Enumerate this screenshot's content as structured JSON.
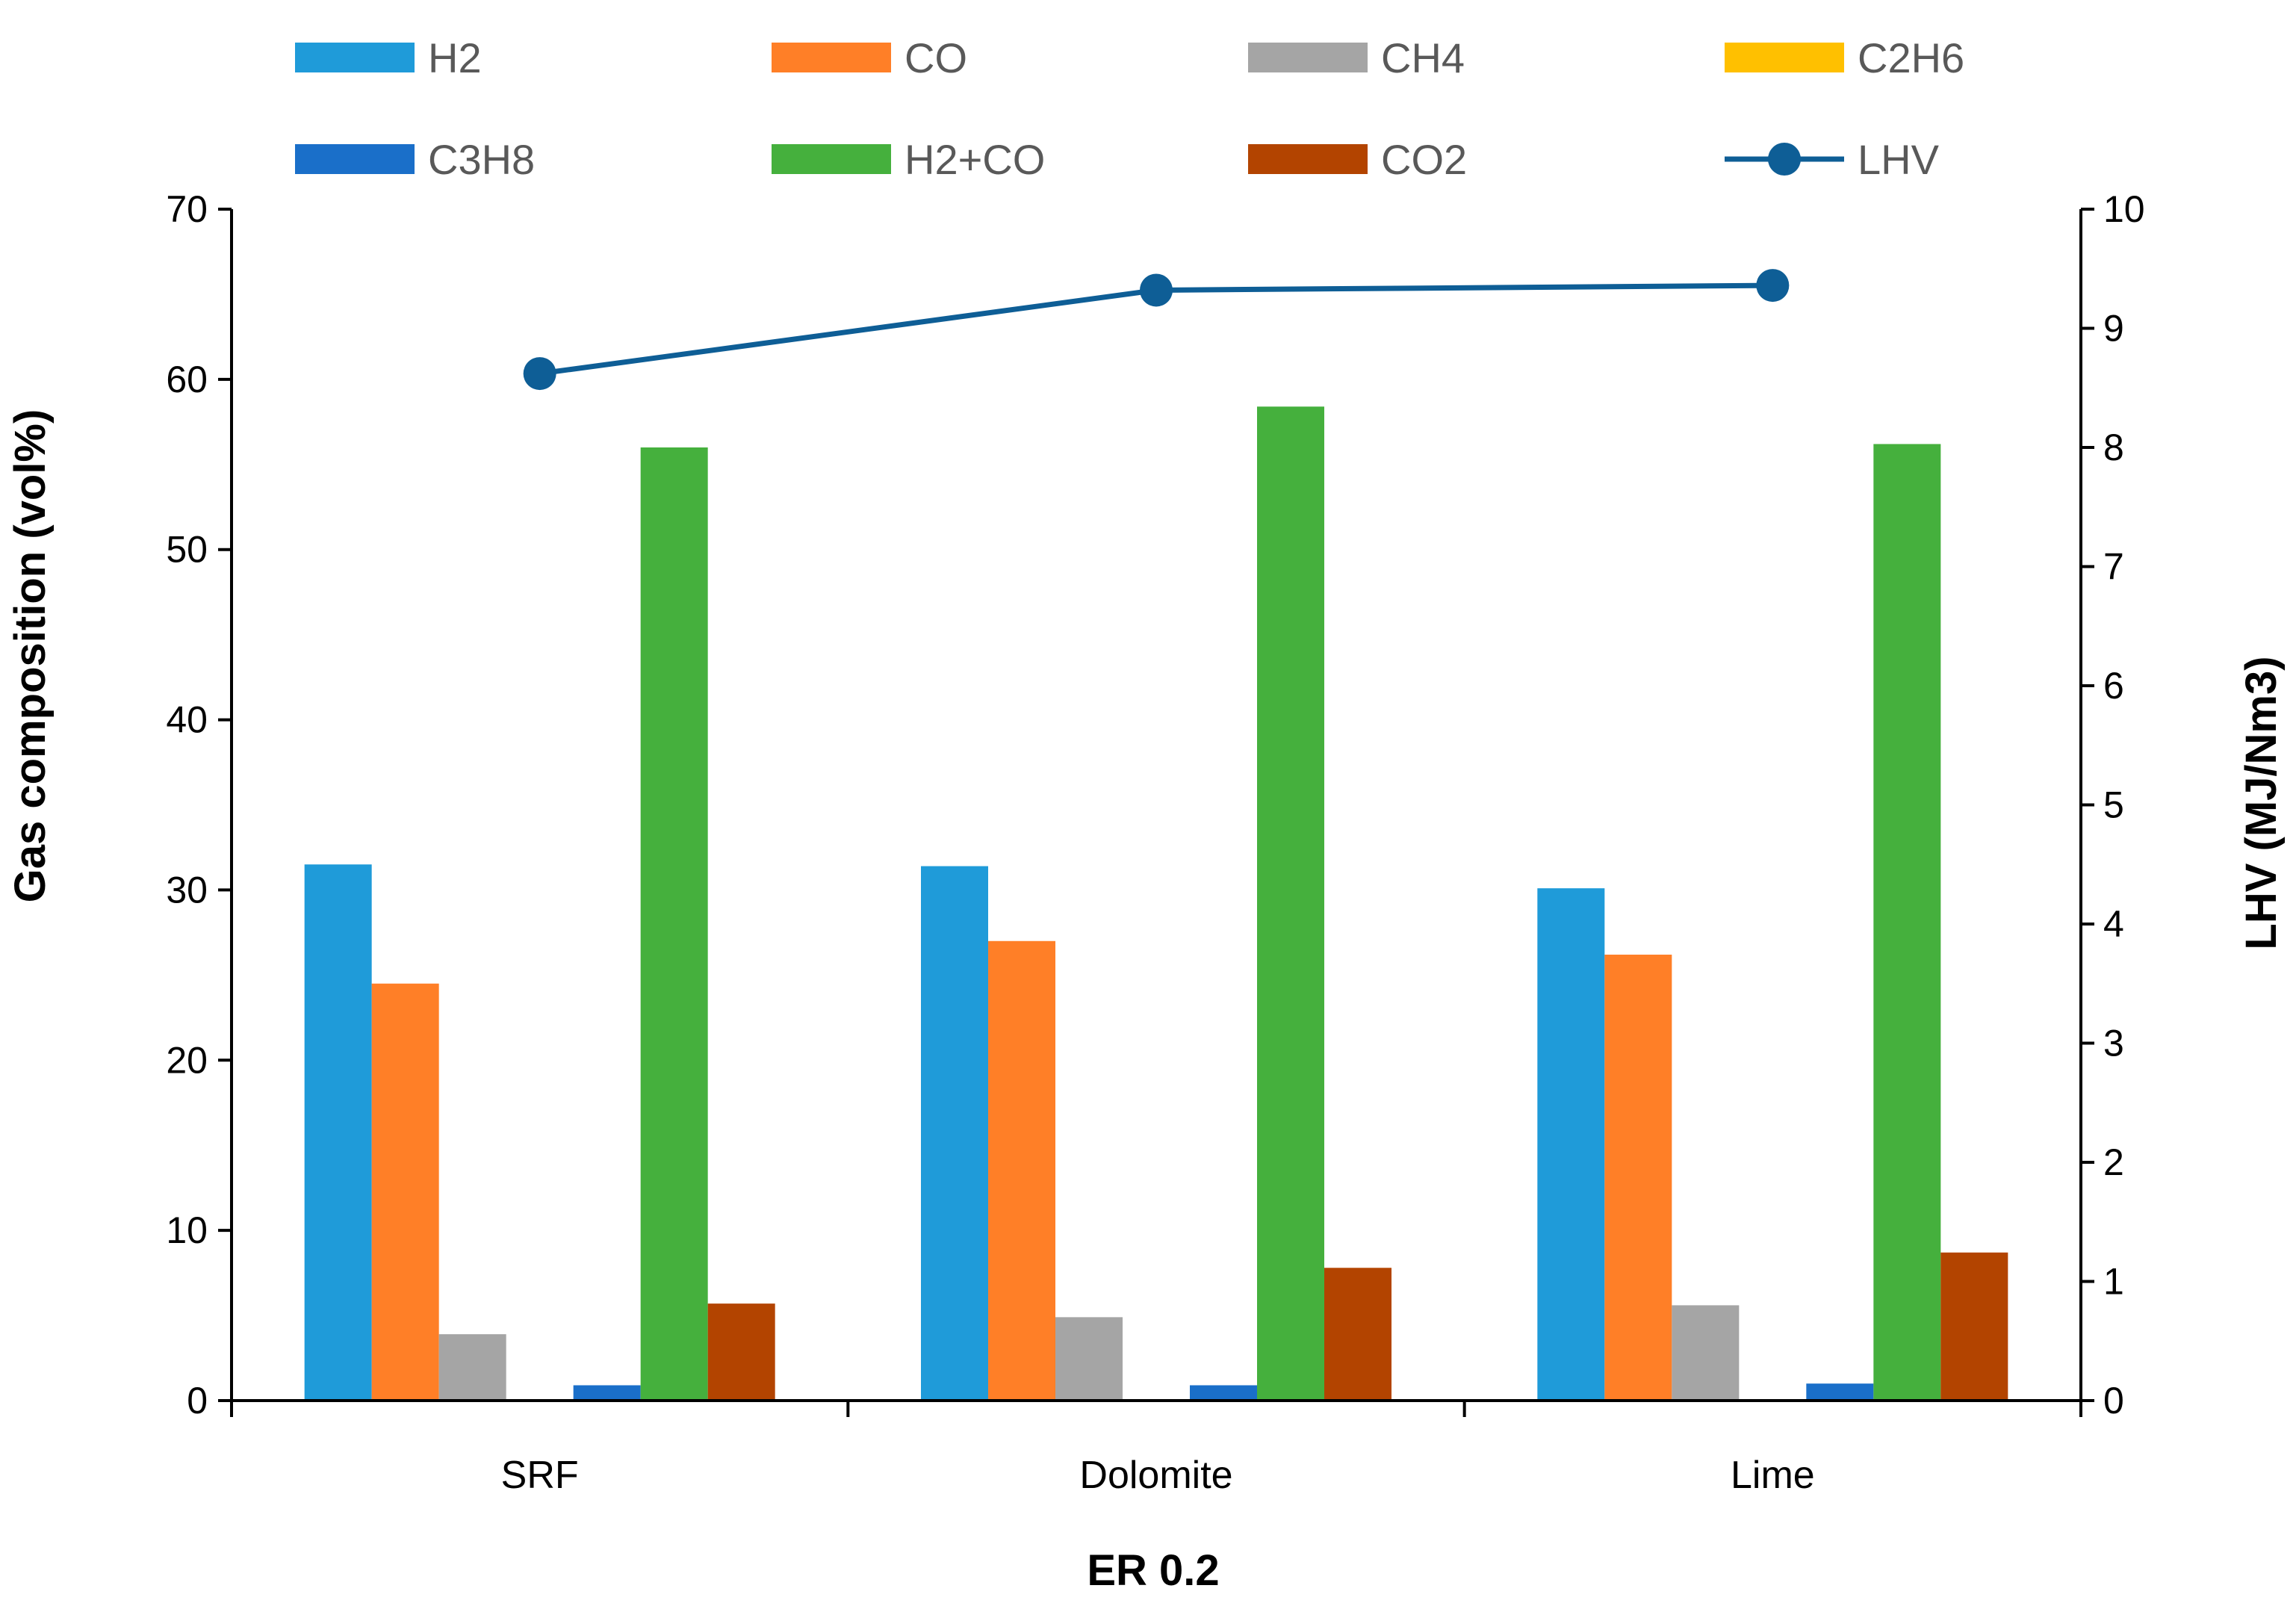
{
  "chart_data": {
    "type": "bar",
    "title": "",
    "xlabel": "ER 0.2",
    "ylabel": "Gas composition (vol%)",
    "y2label": "LHV (MJ/Nm3)",
    "ylim": [
      0,
      70
    ],
    "y2lim": [
      0,
      10
    ],
    "yticks": [
      "0",
      "10",
      "20",
      "30",
      "40",
      "50",
      "60",
      "70"
    ],
    "y2ticks": [
      "0",
      "1",
      "2",
      "3",
      "4",
      "5",
      "6",
      "7",
      "8",
      "9",
      "10"
    ],
    "grid": false,
    "legend_position": "top",
    "categories": [
      "SRF",
      "Dolomite",
      "Lime"
    ],
    "series": [
      {
        "name": "H2",
        "type": "bar",
        "axis": "left",
        "color": "#1F9BD9",
        "values": [
          31.5,
          31.4,
          30.1
        ]
      },
      {
        "name": "CO",
        "type": "bar",
        "axis": "left",
        "color": "#FF7F27",
        "values": [
          24.5,
          27.0,
          26.2
        ]
      },
      {
        "name": "CH4",
        "type": "bar",
        "axis": "left",
        "color": "#A5A5A5",
        "values": [
          3.9,
          4.9,
          5.6
        ]
      },
      {
        "name": "C2H6",
        "type": "bar",
        "axis": "left",
        "color": "#FFC000",
        "values": [
          0.0,
          0.0,
          0.0
        ]
      },
      {
        "name": "C3H8",
        "type": "bar",
        "axis": "left",
        "color": "#1A6FC9",
        "values": [
          0.9,
          0.9,
          1.0
        ]
      },
      {
        "name": "H2+CO",
        "type": "bar",
        "axis": "left",
        "color": "#45B03D",
        "values": [
          56.0,
          58.4,
          56.2
        ]
      },
      {
        "name": "CO2",
        "type": "bar",
        "axis": "left",
        "color": "#B34400",
        "values": [
          5.7,
          7.8,
          8.7
        ]
      },
      {
        "name": "LHV",
        "type": "line",
        "axis": "right",
        "color": "#0E5E96",
        "values": [
          8.62,
          9.32,
          9.36
        ]
      }
    ]
  }
}
